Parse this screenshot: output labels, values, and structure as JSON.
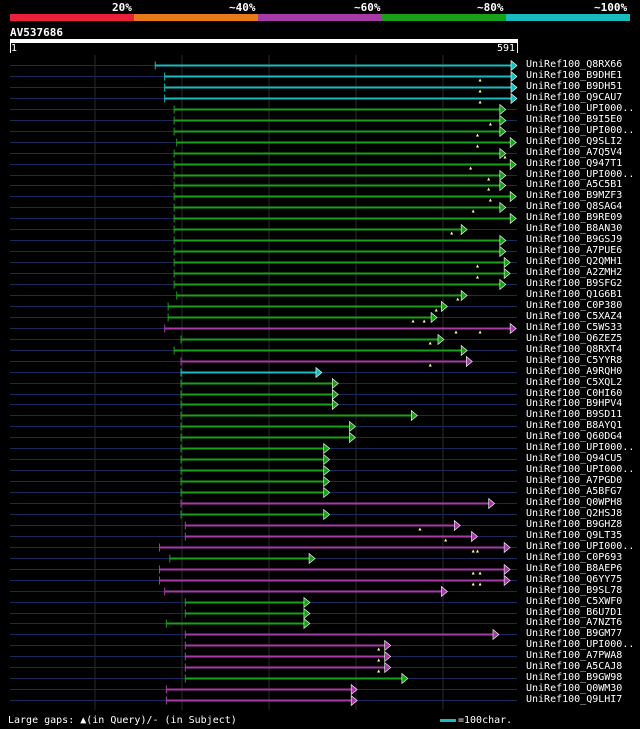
{
  "legend": {
    "labels": [
      "20%",
      "~40%",
      "~60%",
      "~80%",
      "~100%"
    ],
    "colors": [
      "#e8213a",
      "#e87a1c",
      "#a63aa6",
      "#19a019",
      "#19bcbc"
    ]
  },
  "query": {
    "id": "AV537686",
    "start": "1",
    "end": "591",
    "length": 591
  },
  "hits": [
    {
      "name": "UniRef100_Q8RX66",
      "start": 170,
      "end": 591,
      "color": "#19bcbc",
      "marks": []
    },
    {
      "name": "UniRef100_B9DHE1",
      "start": 181,
      "end": 591,
      "color": "#19bcbc",
      "marks": [
        548
      ]
    },
    {
      "name": "UniRef100_B9DH51",
      "start": 181,
      "end": 591,
      "color": "#19bcbc",
      "marks": [
        548
      ]
    },
    {
      "name": "UniRef100_Q9CAU7",
      "start": 181,
      "end": 591,
      "color": "#19bcbc",
      "marks": [
        548
      ]
    },
    {
      "name": "UniRef100_UPI000..",
      "start": 192,
      "end": 578,
      "color": "#19a019",
      "marks": []
    },
    {
      "name": "UniRef100_B9I5E0",
      "start": 192,
      "end": 578,
      "color": "#19a019",
      "marks": [
        560
      ]
    },
    {
      "name": "UniRef100_UPI000..",
      "start": 192,
      "end": 578,
      "color": "#19a019",
      "marks": [
        545
      ]
    },
    {
      "name": "UniRef100_Q9SLI2",
      "start": 195,
      "end": 590,
      "color": "#19a019",
      "marks": [
        545
      ]
    },
    {
      "name": "UniRef100_A7Q5V4",
      "start": 192,
      "end": 578,
      "color": "#19a019",
      "marks": [
        577
      ]
    },
    {
      "name": "UniRef100_Q947T1",
      "start": 192,
      "end": 590,
      "color": "#19a019",
      "marks": [
        537
      ]
    },
    {
      "name": "UniRef100_UPI000..",
      "start": 192,
      "end": 578,
      "color": "#19a019",
      "marks": [
        558
      ]
    },
    {
      "name": "UniRef100_A5C5B1",
      "start": 192,
      "end": 578,
      "color": "#19a019",
      "marks": [
        558
      ]
    },
    {
      "name": "UniRef100_B9MZF3",
      "start": 192,
      "end": 590,
      "color": "#19a019",
      "marks": [
        560
      ]
    },
    {
      "name": "UniRef100_Q8SAG4",
      "start": 192,
      "end": 578,
      "color": "#19a019",
      "marks": [
        540
      ]
    },
    {
      "name": "UniRef100_B9RE09",
      "start": 192,
      "end": 590,
      "color": "#19a019",
      "marks": []
    },
    {
      "name": "UniRef100_B8AN30",
      "start": 192,
      "end": 533,
      "color": "#19a019",
      "marks": [
        515
      ]
    },
    {
      "name": "UniRef100_B9GSJ9",
      "start": 192,
      "end": 578,
      "color": "#19a019",
      "marks": []
    },
    {
      "name": "UniRef100_A7PUE6",
      "start": 192,
      "end": 578,
      "color": "#19a019",
      "marks": []
    },
    {
      "name": "UniRef100_Q2QMH1",
      "start": 192,
      "end": 583,
      "color": "#19a019",
      "marks": [
        545
      ]
    },
    {
      "name": "UniRef100_A2ZMH2",
      "start": 192,
      "end": 583,
      "color": "#19a019",
      "marks": [
        545
      ]
    },
    {
      "name": "UniRef100_B9SFG2",
      "start": 192,
      "end": 578,
      "color": "#19a019",
      "marks": []
    },
    {
      "name": "UniRef100_Q1G6B1",
      "start": 195,
      "end": 533,
      "color": "#19a019",
      "marks": [
        522
      ]
    },
    {
      "name": "UniRef100_C0P380",
      "start": 185,
      "end": 510,
      "color": "#19a019",
      "marks": [
        497
      ]
    },
    {
      "name": "UniRef100_C5XAZ4",
      "start": 185,
      "end": 498,
      "color": "#19a019",
      "marks": [
        470,
        483
      ]
    },
    {
      "name": "UniRef100_C5WS33",
      "start": 181,
      "end": 590,
      "color": "#a63aa6",
      "marks": [
        520,
        548
      ]
    },
    {
      "name": "UniRef100_Q6ZEZ5",
      "start": 200,
      "end": 506,
      "color": "#19a019",
      "marks": [
        490
      ]
    },
    {
      "name": "UniRef100_Q8RXT4",
      "start": 192,
      "end": 533,
      "color": "#19a019",
      "marks": []
    },
    {
      "name": "UniRef100_C5YYR8",
      "start": 200,
      "end": 539,
      "color": "#a63aa6",
      "marks": [
        490
      ]
    },
    {
      "name": "UniRef100_A9RQH0",
      "start": 200,
      "end": 364,
      "color": "#19bcbc",
      "marks": []
    },
    {
      "name": "UniRef100_C5XQL2",
      "start": 200,
      "end": 383,
      "color": "#19a019",
      "marks": []
    },
    {
      "name": "UniRef100_C0HI60",
      "start": 200,
      "end": 383,
      "color": "#19a019",
      "marks": []
    },
    {
      "name": "UniRef100_B9HPV4",
      "start": 200,
      "end": 383,
      "color": "#19a019",
      "marks": []
    },
    {
      "name": "UniRef100_B9SD11",
      "start": 200,
      "end": 475,
      "color": "#19a019",
      "marks": []
    },
    {
      "name": "UniRef100_B8AYQ1",
      "start": 200,
      "end": 403,
      "color": "#19a019",
      "marks": []
    },
    {
      "name": "UniRef100_Q60DG4",
      "start": 200,
      "end": 403,
      "color": "#19a019",
      "marks": []
    },
    {
      "name": "UniRef100_UPI000..",
      "start": 200,
      "end": 373,
      "color": "#19a019",
      "marks": []
    },
    {
      "name": "UniRef100_Q94CU5",
      "start": 200,
      "end": 373,
      "color": "#19a019",
      "marks": []
    },
    {
      "name": "UniRef100_UPI000..",
      "start": 200,
      "end": 373,
      "color": "#19a019",
      "marks": []
    },
    {
      "name": "UniRef100_A7PGD0",
      "start": 200,
      "end": 373,
      "color": "#19a019",
      "marks": []
    },
    {
      "name": "UniRef100_A5BFG7",
      "start": 200,
      "end": 373,
      "color": "#19a019",
      "marks": []
    },
    {
      "name": "UniRef100_Q0WPH8",
      "start": 200,
      "end": 565,
      "color": "#a63aa6",
      "marks": []
    },
    {
      "name": "UniRef100_Q2HSJ8",
      "start": 200,
      "end": 373,
      "color": "#19a019",
      "marks": []
    },
    {
      "name": "UniRef100_B9GHZ8",
      "start": 205,
      "end": 525,
      "color": "#a63aa6",
      "marks": [
        478
      ]
    },
    {
      "name": "UniRef100_Q9LT35",
      "start": 205,
      "end": 545,
      "color": "#a63aa6",
      "marks": [
        508
      ]
    },
    {
      "name": "UniRef100_UPI000..",
      "start": 175,
      "end": 583,
      "color": "#a63aa6",
      "marks": [
        540,
        545
      ]
    },
    {
      "name": "UniRef100_C0P693",
      "start": 187,
      "end": 356,
      "color": "#19a019",
      "marks": []
    },
    {
      "name": "UniRef100_B8AEP6",
      "start": 175,
      "end": 583,
      "color": "#a63aa6",
      "marks": [
        540,
        548
      ]
    },
    {
      "name": "UniRef100_Q6YY75",
      "start": 175,
      "end": 583,
      "color": "#a63aa6",
      "marks": [
        540,
        548
      ]
    },
    {
      "name": "UniRef100_B9SL78",
      "start": 181,
      "end": 510,
      "color": "#a63aa6",
      "marks": []
    },
    {
      "name": "UniRef100_C5XWF0",
      "start": 205,
      "end": 350,
      "color": "#19a019",
      "marks": []
    },
    {
      "name": "UniRef100_B6U7D1",
      "start": 205,
      "end": 350,
      "color": "#19a019",
      "marks": []
    },
    {
      "name": "UniRef100_A7NZT6",
      "start": 183,
      "end": 350,
      "color": "#19a019",
      "marks": []
    },
    {
      "name": "UniRef100_B9GM77",
      "start": 205,
      "end": 570,
      "color": "#a63aa6",
      "marks": []
    },
    {
      "name": "UniRef100_UPI000..",
      "start": 205,
      "end": 444,
      "color": "#a63aa6",
      "marks": [
        430
      ]
    },
    {
      "name": "UniRef100_A7PWA8",
      "start": 205,
      "end": 444,
      "color": "#a63aa6",
      "marks": [
        430
      ]
    },
    {
      "name": "UniRef100_A5CAJ8",
      "start": 205,
      "end": 444,
      "color": "#a63aa6",
      "marks": [
        430
      ]
    },
    {
      "name": "UniRef100_B9GW98",
      "start": 205,
      "end": 464,
      "color": "#19a019",
      "marks": []
    },
    {
      "name": "UniRef100_Q0WM30",
      "start": 183,
      "end": 405,
      "color": "#a63aa6",
      "marks": []
    },
    {
      "name": "UniRef100_Q9LHI7",
      "start": 183,
      "end": 405,
      "color": "#a63aa6",
      "marks": []
    }
  ],
  "footer": {
    "gaps_text": "Large gaps: ▲(in Query)/- (in Subject)",
    "scale_text": "=100char.",
    "scale_color": "#19bcbc"
  }
}
